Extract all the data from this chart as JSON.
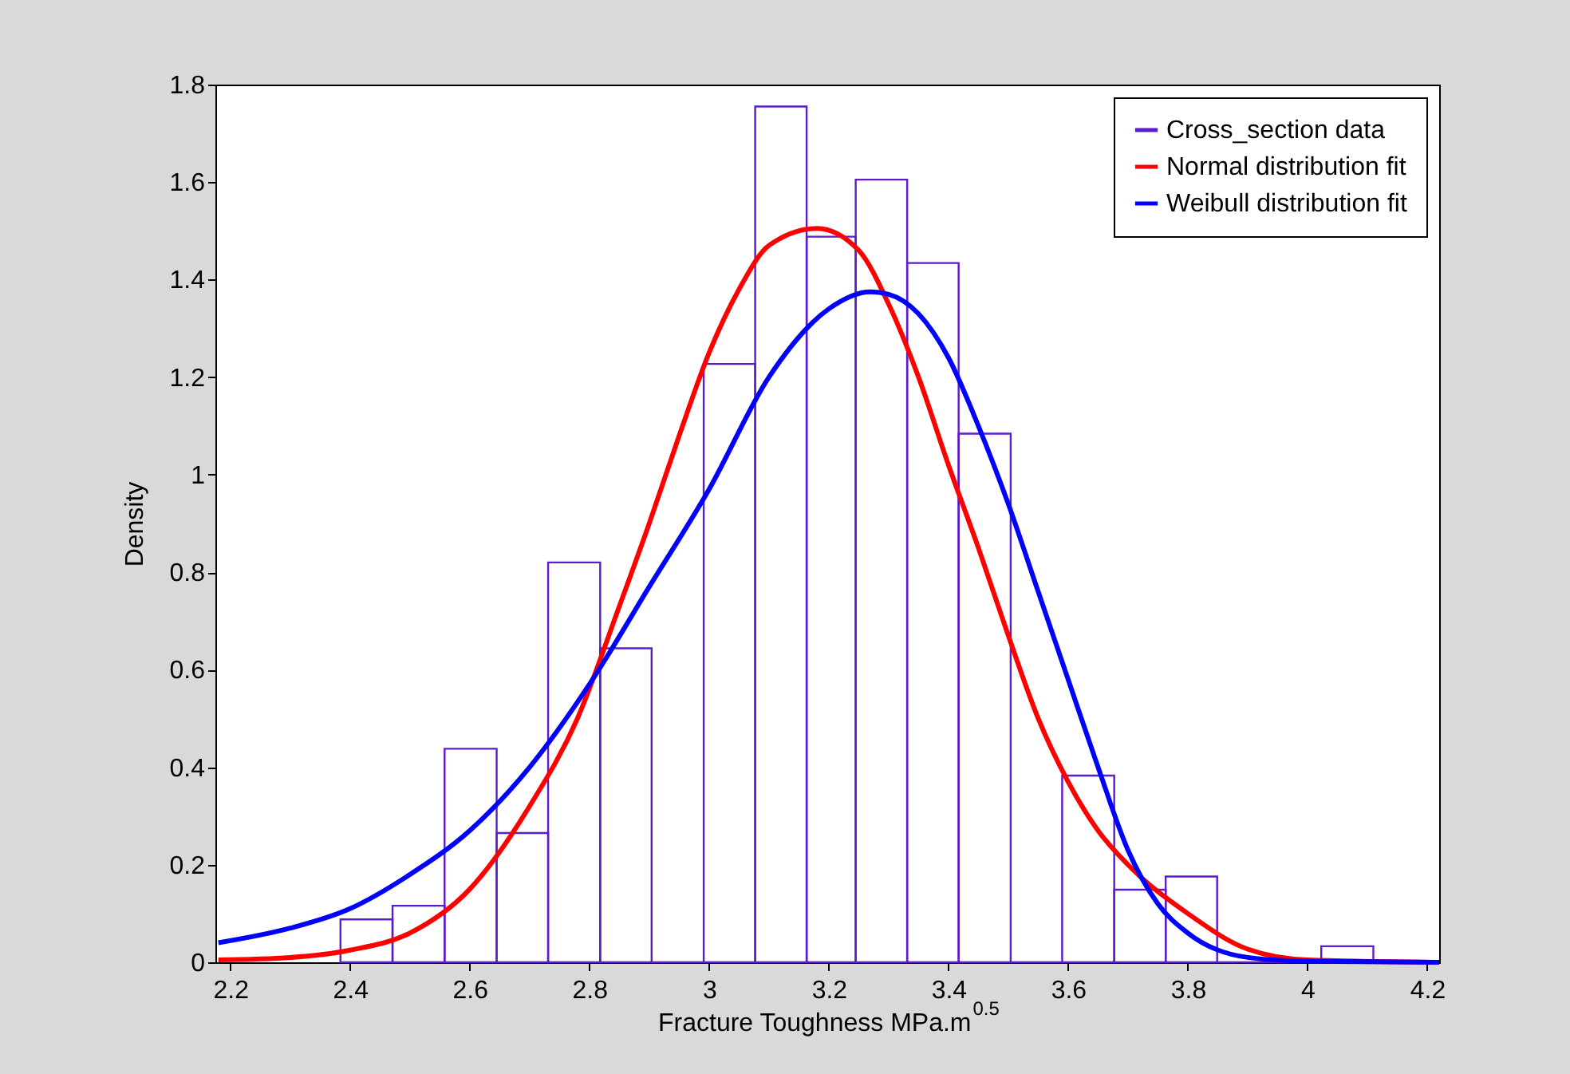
{
  "chart_data": {
    "type": "histogram",
    "xlabel": "Fracture Toughness MPa.m$^{0.5}$",
    "ylabel": "Density",
    "xlim": [
      2.175,
      4.22
    ],
    "ylim": [
      0,
      1.8
    ],
    "xticks": [
      2.2,
      2.4,
      2.6,
      2.8,
      3,
      3.2,
      3.4,
      3.6,
      3.8,
      4,
      4.2
    ],
    "yticks": [
      0,
      0.2,
      0.4,
      0.6,
      0.8,
      1,
      1.2,
      1.4,
      1.6,
      1.8
    ],
    "grid": false,
    "legend": "top right",
    "bins": [
      2.384,
      2.471,
      2.558,
      2.645,
      2.731,
      2.818,
      2.904,
      2.991,
      3.077,
      3.163,
      3.245,
      3.331,
      3.417,
      3.504,
      3.59,
      3.677,
      3.763,
      3.849,
      3.936,
      4.023,
      4.11
    ],
    "series": [
      {
        "name": "Cross_section data",
        "color": "#5b1ccb",
        "values": [
          0.088,
          0.116,
          0.438,
          0.265,
          0.82,
          0.644,
          0,
          1.227,
          1.755,
          1.488,
          1.605,
          1.434,
          1.084,
          0,
          0.383,
          0.149,
          0.176,
          0,
          0,
          0.033
        ]
      },
      {
        "name": "Normal distribution fit",
        "type": "line",
        "color": "#ff0000",
        "x": [
          2.18,
          2.3,
          2.4,
          2.5,
          2.6,
          2.7,
          2.78,
          2.85,
          2.9,
          2.95,
          3.0,
          3.05,
          3.1,
          3.18,
          3.25,
          3.3,
          3.35,
          3.4,
          3.45,
          3.5,
          3.55,
          3.6,
          3.65,
          3.7,
          3.8,
          3.9,
          4.0,
          4.22
        ],
        "values": [
          0.005,
          0.01,
          0.025,
          0.06,
          0.15,
          0.32,
          0.5,
          0.73,
          0.9,
          1.08,
          1.25,
          1.38,
          1.47,
          1.505,
          1.46,
          1.35,
          1.2,
          1.02,
          0.85,
          0.67,
          0.5,
          0.37,
          0.27,
          0.2,
          0.1,
          0.027,
          0.005,
          0
        ]
      },
      {
        "name": "Weibull distribution fit",
        "type": "line",
        "color": "#0000ff",
        "x": [
          2.18,
          2.3,
          2.4,
          2.5,
          2.6,
          2.7,
          2.8,
          2.9,
          3.0,
          3.1,
          3.2,
          3.27,
          3.3,
          3.35,
          3.4,
          3.45,
          3.5,
          3.55,
          3.6,
          3.65,
          3.7,
          3.75,
          3.8,
          3.9,
          4.0,
          4.22
        ],
        "values": [
          0.04,
          0.07,
          0.11,
          0.18,
          0.27,
          0.4,
          0.57,
          0.77,
          0.97,
          1.2,
          1.34,
          1.375,
          1.37,
          1.33,
          1.24,
          1.1,
          0.94,
          0.76,
          0.58,
          0.4,
          0.23,
          0.12,
          0.06,
          0.01,
          0.002,
          0
        ]
      }
    ]
  }
}
